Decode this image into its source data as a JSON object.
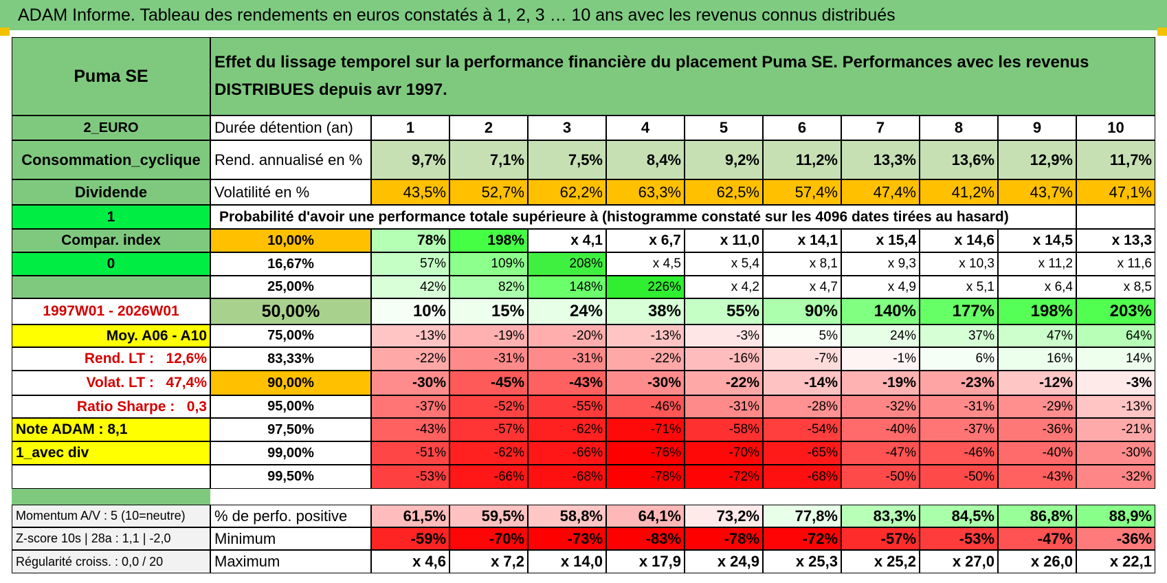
{
  "title": "ADAM Informe. Tableau des rendements en euros constatés à 1, 2, 3 … 10 ans avec les revenus connus distribués",
  "header": {
    "name": "Puma SE",
    "description": "Effet du lissage temporel sur la performance financière du placement Puma SE. Performances avec les revenus DISTRIBUES depuis avr 1997."
  },
  "left": {
    "currency": "2_EURO",
    "sector": "Consommation_cyclique",
    "type": "Dividende",
    "flag1": "1",
    "compar": "Compar. index",
    "flag0": "0",
    "period": "1997W01 - 2026W01",
    "moy": "Moy. A06 - A10",
    "rend_lt_label": "Rend. LT :",
    "rend_lt_value": "12,6%",
    "volat_lt_label": "Volat. LT :",
    "volat_lt_value": "47,4%",
    "sharpe_label": "Ratio Sharpe :",
    "sharpe_value": "0,3",
    "note": "Note ADAM : 8,1",
    "mode": "1_avec div",
    "momentum": "Momentum A/V : 5 (10=neutre)",
    "zscore": "Z-score 10s | 28a : 1,1 | -2,0",
    "regularite": "Régularité croiss. : 0,0 / 20"
  },
  "table": {
    "duration_label": "Durée détention (an)",
    "years": [
      "1",
      "2",
      "3",
      "4",
      "5",
      "6",
      "7",
      "8",
      "9",
      "10"
    ],
    "rend_label": "Rend. annualisé en %",
    "rend": [
      "9,7%",
      "7,1%",
      "7,5%",
      "8,4%",
      "9,2%",
      "11,2%",
      "13,3%",
      "13,6%",
      "12,9%",
      "11,7%"
    ],
    "vol_label": "Volatilité en %",
    "vol": [
      "43,5%",
      "52,7%",
      "62,2%",
      "63,3%",
      "62,5%",
      "57,4%",
      "47,4%",
      "41,2%",
      "43,7%",
      "47,1%"
    ],
    "prob_header": "Probabilité d'avoir une performance totale supérieure à (histogramme constaté sur les 4096 dates tirées au hasard)",
    "prob_rows": [
      {
        "p": "10,00%",
        "values": [
          "78%",
          "198%",
          "x 4,1",
          "x 6,7",
          "x 11,0",
          "x 14,1",
          "x 15,4",
          "x 14,6",
          "x 14,5",
          "x 13,3"
        ],
        "colors": [
          "#b4ffb4",
          "#44ff44",
          "#ffffff",
          "#ffffff",
          "#ffffff",
          "#ffffff",
          "#ffffff",
          "#ffffff",
          "#ffffff",
          "#ffffff"
        ]
      },
      {
        "p": "16,67%",
        "values": [
          "57%",
          "109%",
          "208%",
          "x 4,5",
          "x 5,4",
          "x 8,1",
          "x 9,3",
          "x 10,3",
          "x 11,2",
          "x 11,6"
        ],
        "colors": [
          "#c6ffc6",
          "#8cff8c",
          "#40f040",
          "#ffffff",
          "#ffffff",
          "#ffffff",
          "#ffffff",
          "#ffffff",
          "#ffffff",
          "#ffffff"
        ]
      },
      {
        "p": "25,00%",
        "values": [
          "42%",
          "82%",
          "148%",
          "226%",
          "x 4,2",
          "x 4,7",
          "x 4,9",
          "x 5,1",
          "x 6,4",
          "x 8,5"
        ],
        "colors": [
          "#d8ffd8",
          "#acffac",
          "#6cff6c",
          "#30ee30",
          "#ffffff",
          "#ffffff",
          "#ffffff",
          "#ffffff",
          "#ffffff",
          "#ffffff"
        ]
      },
      {
        "p": "50,00%",
        "values": [
          "10%",
          "15%",
          "24%",
          "38%",
          "55%",
          "90%",
          "140%",
          "177%",
          "198%",
          "203%"
        ],
        "colors": [
          "#f6fff6",
          "#eeffee",
          "#e6ffe6",
          "#d8ffd8",
          "#c6ffc6",
          "#acffac",
          "#80ff80",
          "#66ff66",
          "#55ff55",
          "#50ff50"
        ]
      },
      {
        "p": "75,00%",
        "values": [
          "-13%",
          "-19%",
          "-20%",
          "-13%",
          "-3%",
          "5%",
          "24%",
          "37%",
          "47%",
          "64%"
        ],
        "colors": [
          "#ffc4c4",
          "#ffb0b0",
          "#ffadad",
          "#ffc4c4",
          "#ffe6e6",
          "#fafffa",
          "#e6ffe6",
          "#d6ffd6",
          "#ccffcc",
          "#b8ffb8"
        ]
      },
      {
        "p": "83,33%",
        "values": [
          "-22%",
          "-31%",
          "-31%",
          "-22%",
          "-16%",
          "-7%",
          "-1%",
          "6%",
          "16%",
          "14%"
        ],
        "colors": [
          "#ffa8a8",
          "#ff8a8a",
          "#ff8a8a",
          "#ffa8a8",
          "#ffbcbc",
          "#ffdcdc",
          "#fff4f4",
          "#f6fff6",
          "#ecffec",
          "#eeffee"
        ]
      },
      {
        "p": "90,00%",
        "values": [
          "-30%",
          "-45%",
          "-43%",
          "-30%",
          "-22%",
          "-14%",
          "-19%",
          "-23%",
          "-12%",
          "-3%"
        ],
        "colors": [
          "#ff8c8c",
          "#ff5a5a",
          "#ff6060",
          "#ff8c8c",
          "#ffa8a8",
          "#ffc2c2",
          "#ffb2b2",
          "#ffa4a4",
          "#ffc6c6",
          "#ffeaea"
        ]
      },
      {
        "p": "95,00%",
        "values": [
          "-37%",
          "-52%",
          "-55%",
          "-46%",
          "-31%",
          "-28%",
          "-32%",
          "-31%",
          "-29%",
          "-13%"
        ],
        "colors": [
          "#ff7474",
          "#ff4242",
          "#ff3a3a",
          "#ff5656",
          "#ff8a8a",
          "#ff9292",
          "#ff8686",
          "#ff8a8a",
          "#ff8e8e",
          "#ffc4c4"
        ]
      },
      {
        "p": "97,50%",
        "values": [
          "-43%",
          "-57%",
          "-62%",
          "-71%",
          "-58%",
          "-54%",
          "-40%",
          "-37%",
          "-36%",
          "-21%"
        ],
        "colors": [
          "#ff6060",
          "#ff3434",
          "#ff2020",
          "#ff0a0a",
          "#ff3030",
          "#ff3e3e",
          "#ff6a6a",
          "#ff7474",
          "#ff7878",
          "#ffaaaa"
        ]
      },
      {
        "p": "99,00%",
        "values": [
          "-51%",
          "-62%",
          "-66%",
          "-76%",
          "-70%",
          "-65%",
          "-47%",
          "-46%",
          "-40%",
          "-30%"
        ],
        "colors": [
          "#ff4646",
          "#ff2020",
          "#ff1616",
          "#ff0000",
          "#ff0808",
          "#ff1a1a",
          "#ff5252",
          "#ff5656",
          "#ff6a6a",
          "#ff8c8c"
        ]
      },
      {
        "p": "99,50%",
        "values": [
          "-53%",
          "-66%",
          "-68%",
          "-78%",
          "-72%",
          "-68%",
          "-50%",
          "-50%",
          "-43%",
          "-32%"
        ],
        "colors": [
          "#ff4040",
          "#ff1616",
          "#ff1010",
          "#ff0000",
          "#ff0404",
          "#ff1010",
          "#ff4a4a",
          "#ff4a4a",
          "#ff6060",
          "#ff8686"
        ]
      }
    ],
    "pos_label": "% de perfo. positive",
    "pos": [
      "61,5%",
      "59,5%",
      "58,8%",
      "64,1%",
      "73,2%",
      "77,8%",
      "83,3%",
      "84,5%",
      "86,8%",
      "88,9%"
    ],
    "pos_colors": [
      "#ffbcbc",
      "#ffc2c2",
      "#ffc6c6",
      "#ffb8b8",
      "#ffeaea",
      "#e8ffe8",
      "#b8ffb8",
      "#aaffaa",
      "#98ff98",
      "#88ff88"
    ],
    "min_label": "Minimum",
    "min": [
      "-59%",
      "-70%",
      "-73%",
      "-83%",
      "-78%",
      "-72%",
      "-57%",
      "-53%",
      "-47%",
      "-36%"
    ],
    "min_colors": [
      "#ff2424",
      "#ff0606",
      "#ff0000",
      "#ff0000",
      "#ff0000",
      "#ff0404",
      "#ff2c2c",
      "#ff3c3c",
      "#ff5252",
      "#ff7a7a"
    ],
    "max_label": "Maximum",
    "max": [
      "x 4,6",
      "x 7,2",
      "x 14,0",
      "x 17,9",
      "x 24,9",
      "x 25,3",
      "x 25,2",
      "x 27,0",
      "x 26,0",
      "x 22,1"
    ]
  }
}
